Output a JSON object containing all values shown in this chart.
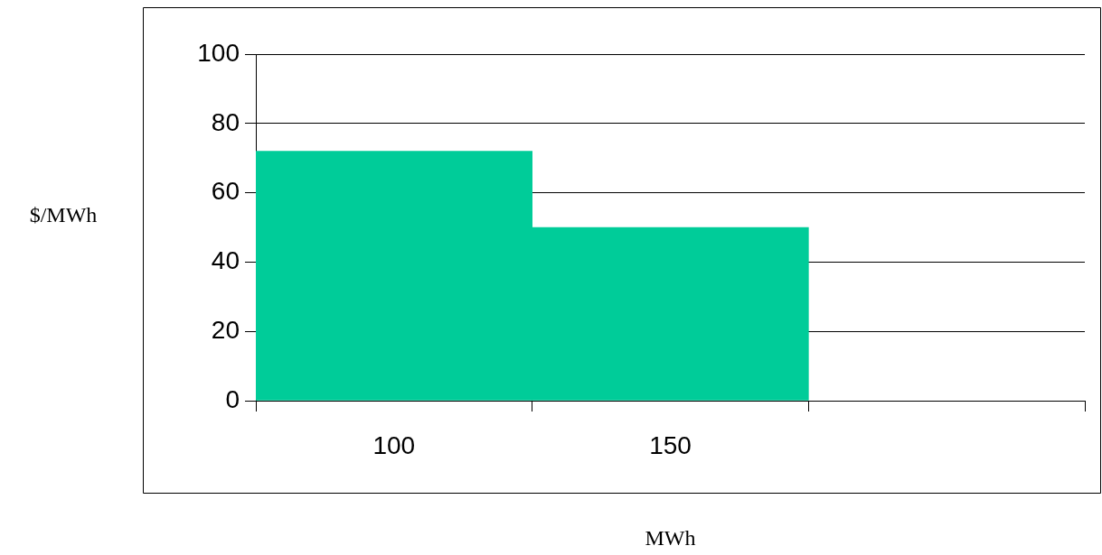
{
  "chart_data": {
    "type": "bar",
    "xlabel": "MWh",
    "ylabel": "$/MWh",
    "categories": [
      "100",
      "150",
      null
    ],
    "values": [
      72,
      50,
      null
    ],
    "color": "#00cc99",
    "ylim": [
      0,
      100
    ],
    "yticks": [
      0,
      20,
      40,
      60,
      80,
      100
    ],
    "grid": "y"
  }
}
